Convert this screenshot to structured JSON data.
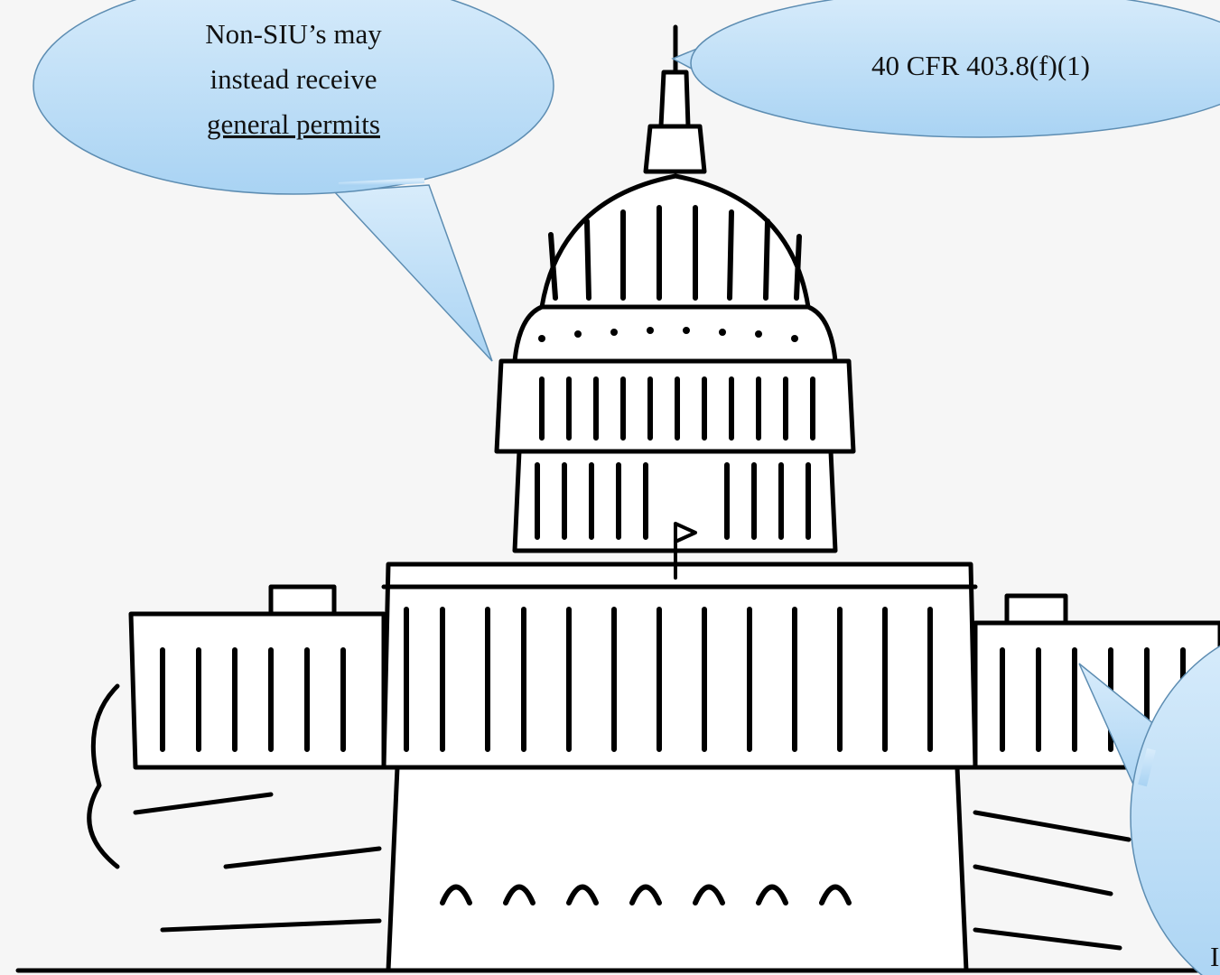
{
  "bubbles": [
    {
      "lines": [
        "Non-SIU’s may",
        "instead receive",
        "general permits"
      ]
    },
    {
      "text": "40 CFR 403.8(f)(1)"
    },
    {
      "text": "I"
    }
  ]
}
